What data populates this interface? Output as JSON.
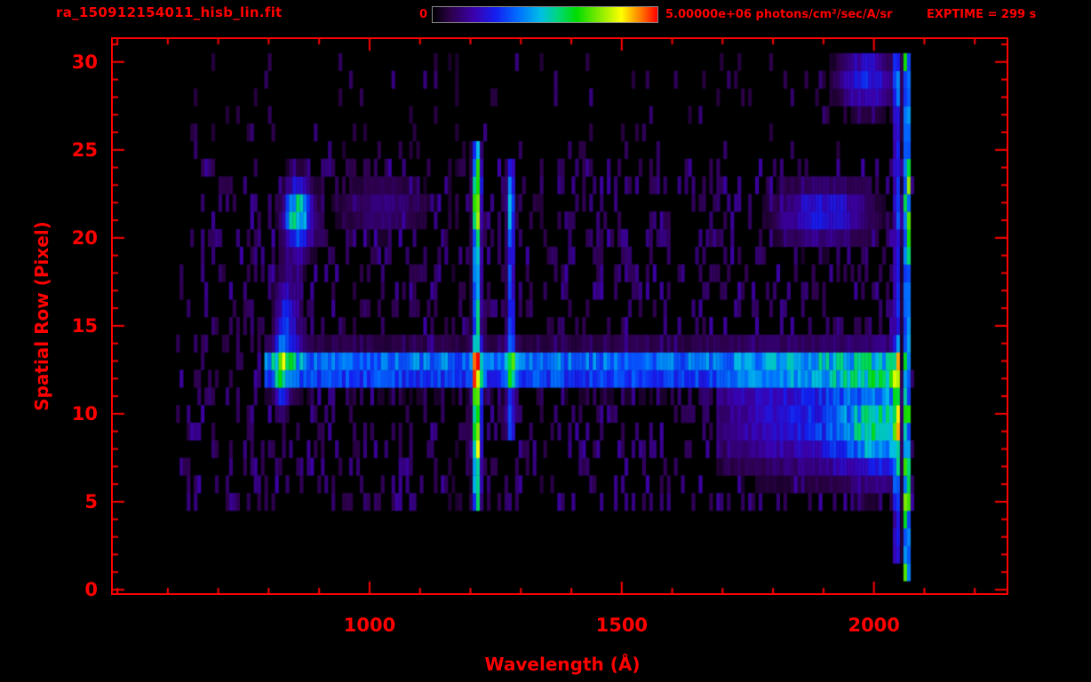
{
  "colors": {
    "accent": "#ff0000",
    "background": "#000000",
    "colorbar_border": "#8a8a8a"
  },
  "header": {
    "filename": "ra_150912154011_hisb_lin.fit",
    "colorbar_min_label": "0",
    "colorbar_max_label": "5.00000e+06 photons/cm²/sec/A/sr",
    "exptime_label": "EXPTIME = 299 s"
  },
  "chart_data": {
    "type": "heatmap",
    "title": "ra_150912154011_hisb_lin.fit",
    "xlabel": "Wavelength (Å)",
    "ylabel": "Spatial Row (Pixel)",
    "xlim": [
      491,
      2263
    ],
    "ylim": [
      -0.2,
      31.3
    ],
    "xticks": [
      1000,
      1500,
      2000
    ],
    "xminor_step": 100,
    "yticks": [
      0,
      5,
      10,
      15,
      20,
      25,
      30
    ],
    "yminor_step": 1,
    "colorbar": {
      "min_value": 0,
      "max_value": 5000000,
      "units": "photons/cm²/sec/A/sr"
    },
    "exptime_seconds": 299,
    "colormap_stops": [
      [
        0.0,
        0,
        0,
        0
      ],
      [
        0.08,
        45,
        0,
        75
      ],
      [
        0.18,
        60,
        0,
        170
      ],
      [
        0.28,
        20,
        30,
        240
      ],
      [
        0.38,
        0,
        110,
        255
      ],
      [
        0.48,
        0,
        190,
        230
      ],
      [
        0.56,
        0,
        215,
        120
      ],
      [
        0.64,
        0,
        220,
        0
      ],
      [
        0.74,
        130,
        235,
        0
      ],
      [
        0.84,
        255,
        255,
        0
      ],
      [
        0.92,
        255,
        130,
        0
      ],
      [
        1.0,
        255,
        0,
        0
      ]
    ],
    "extent": {
      "wl_min": 640,
      "wl_max": 2085
    },
    "noise": {
      "seed": 7,
      "amplitude": {
        "rows_0_2": 0.2,
        "rows_3_4": 0.3,
        "rows_5_24": 0.46,
        "rows_25_30": 0.36
      },
      "gap_prob": {
        "rows_0_2": 0.93,
        "rows_3_4": 0.6,
        "rows_5_24": 0.22,
        "rows_25_30": 0.42
      }
    },
    "features": [
      {
        "name": "emission-line-1213",
        "type": "vline",
        "wavelength": 1213,
        "sigma_wl": 8,
        "row_min": 4.3,
        "row_max": 25.2,
        "amplitude": 0.72
      },
      {
        "name": "line-1213-hotspot-lower",
        "type": "blob",
        "wavelength": 1213,
        "sigma_wl": 8,
        "row": 10,
        "sigma_row": 3.2,
        "amplitude": 0.5
      },
      {
        "name": "line-1213-hotspot-upper",
        "type": "blob",
        "wavelength": 1213,
        "sigma_wl": 8,
        "row": 22,
        "sigma_row": 2.0,
        "amplitude": 0.45
      },
      {
        "name": "emission-line-1280",
        "type": "vline",
        "wavelength": 1280,
        "sigma_wl": 8,
        "row_min": 9,
        "row_max": 24.6,
        "amplitude": 0.45
      },
      {
        "name": "line-1280-hotspot",
        "type": "blob",
        "wavelength": 1280,
        "sigma_wl": 7,
        "row": 22,
        "sigma_row": 1.6,
        "amplitude": 0.22
      },
      {
        "name": "continuum-row-band",
        "type": "hband",
        "row": 12.6,
        "sigma_row": 1.05,
        "wl_min": 795,
        "wl_max": 2052,
        "amplitude": 0.62
      },
      {
        "name": "left-bright-blob",
        "type": "blob",
        "wavelength": 860,
        "sigma_wl": 30,
        "row": 21.2,
        "sigma_row": 2.1,
        "amplitude": 0.6
      },
      {
        "name": "left-blob-core",
        "type": "blob",
        "wavelength": 850,
        "sigma_wl": 16,
        "row": 21.5,
        "sigma_row": 1.2,
        "amplitude": 0.28
      },
      {
        "name": "left-arc",
        "type": "blob",
        "wavelength": 838,
        "sigma_wl": 26,
        "row": 15.2,
        "sigma_row": 3.0,
        "amplitude": 0.36
      },
      {
        "name": "left-column",
        "type": "blob",
        "wavelength": 826,
        "sigma_wl": 13,
        "row": 12.4,
        "sigma_row": 2.4,
        "amplitude": 0.4
      },
      {
        "name": "right-continuum-ramp",
        "type": "ramp",
        "wl_min": 1690,
        "wl_max": 2052,
        "row": 9.6,
        "sigma_row": 3.1,
        "amp_start": 0.18,
        "amp_end": 0.6
      },
      {
        "name": "right-continuum-hotspot",
        "type": "blob",
        "wavelength": 1995,
        "sigma_wl": 60,
        "row": 8.8,
        "sigma_row": 2.2,
        "amplitude": 0.24
      },
      {
        "name": "right-upper-band",
        "type": "blob",
        "wavelength": 1900,
        "sigma_wl": 95,
        "row": 21.4,
        "sigma_row": 1.8,
        "amplitude": 0.38
      },
      {
        "name": "mid-upper-speckle-band",
        "type": "blob",
        "wavelength": 1030,
        "sigma_wl": 95,
        "row": 21.8,
        "sigma_row": 1.7,
        "amplitude": 0.2
      },
      {
        "name": "top-right-patch",
        "type": "blob",
        "wavelength": 1985,
        "sigma_wl": 55,
        "row": 29,
        "sigma_row": 1.7,
        "amplitude": 0.42
      },
      {
        "name": "pre-edge-green-column",
        "type": "vline",
        "wavelength": 2046,
        "sigma_wl": 7,
        "row_min": 2,
        "row_max": 30,
        "amplitude": 0.42
      },
      {
        "name": "detector-red-edge",
        "type": "vedge",
        "wl_min": 2056,
        "wl_max": 2074,
        "row_min": 0.5,
        "row_max": 30.3,
        "amplitude": 1.0
      }
    ],
    "dips": [
      {
        "wavelength": 1168,
        "sigma": 14,
        "depth": 0.5
      },
      {
        "wavelength": 1345,
        "sigma": 18,
        "depth": 0.35
      },
      {
        "wavelength": 960,
        "sigma": 25,
        "depth": 0.22
      },
      {
        "wavelength": 705,
        "sigma": 15,
        "depth": 0.2
      }
    ]
  }
}
